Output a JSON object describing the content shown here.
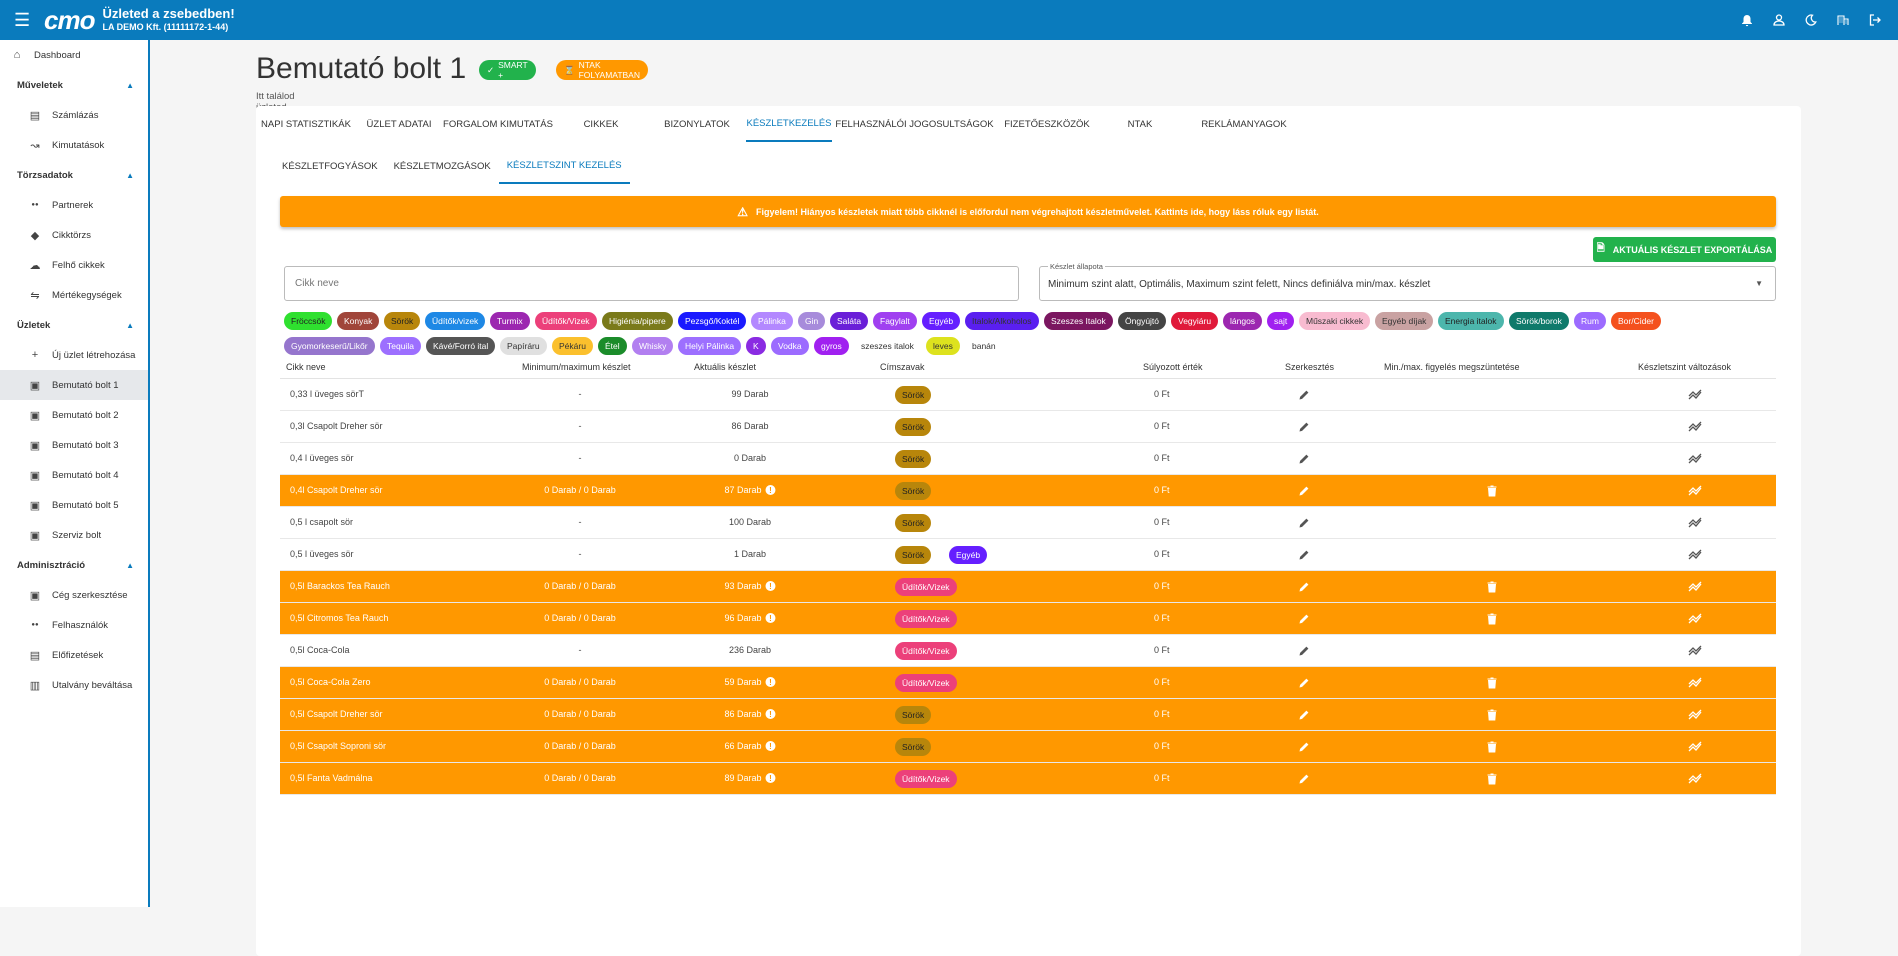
{
  "topbar": {
    "logo": "cmo",
    "title": "Üzleted a zsebedben!",
    "company": "LA DEMO Kft. (11111172-1-44)",
    "icons": [
      "flag-hu-icon",
      "bell-icon",
      "user-icon",
      "moon-icon",
      "building-icon",
      "logout-icon"
    ]
  },
  "sidebar": {
    "dashboard": "Dashboard",
    "sections": [
      {
        "title": "Műveletek",
        "items": [
          {
            "label": "Számlázás",
            "icon": "invoice-icon"
          },
          {
            "label": "Kimutatások",
            "icon": "chart-icon"
          }
        ]
      },
      {
        "title": "Törzsadatok",
        "items": [
          {
            "label": "Partnerek",
            "icon": "people-icon"
          },
          {
            "label": "Cikktörzs",
            "icon": "tag-icon"
          },
          {
            "label": "Felhő cikkek",
            "icon": "cloud-icon"
          },
          {
            "label": "Mértékegységek",
            "icon": "scale-icon"
          }
        ]
      },
      {
        "title": "Üzletek",
        "items": [
          {
            "label": "Új üzlet létrehozása",
            "icon": "plus-icon"
          },
          {
            "label": "Bemutató bolt 1",
            "icon": "store-icon",
            "active": true
          },
          {
            "label": "Bemutató bolt 2",
            "icon": "store-icon"
          },
          {
            "label": "Bemutató bolt 3",
            "icon": "store-icon"
          },
          {
            "label": "Bemutató bolt 4",
            "icon": "store-icon"
          },
          {
            "label": "Bemutató bolt 5",
            "icon": "store-icon"
          },
          {
            "label": "Szerviz bolt",
            "icon": "store-icon"
          }
        ]
      },
      {
        "title": "Adminisztráció",
        "items": [
          {
            "label": "Cég szerkesztése",
            "icon": "company-icon"
          },
          {
            "label": "Felhasználók",
            "icon": "people-icon"
          },
          {
            "label": "Előfizetések",
            "icon": "subscription-icon"
          },
          {
            "label": "Utalvány beváltása",
            "icon": "voucher-icon"
          }
        ]
      }
    ]
  },
  "header": {
    "title": "Bemutató bolt 1",
    "badge_smart": "SMART +",
    "badge_ntak": "NTAK FOLYAMATBAN",
    "subtitle": "Itt találod üzleted legfontosabb adatait és beállításait!"
  },
  "tabs": [
    "NAPI STATISZTIKÁK",
    "ÜZLET ADATAI",
    "FORGALOM KIMUTATÁS",
    "CIKKEK",
    "BIZONYLATOK",
    "KÉSZLETKEZELÉS",
    "FELHASZNÁLÓI JOGOSULTSÁGOK",
    "FIZETŐESZKÖZÖK",
    "NTAK",
    "REKLÁMANYAGOK"
  ],
  "active_tab": 5,
  "subtabs": [
    "KÉSZLETFOGYÁSOK",
    "KÉSZLETMOZGÁSOK",
    "KÉSZLETSZINT KEZELÉS"
  ],
  "active_subtab": 2,
  "warning": "Figyelem! Hiányos készletek miatt több cikknél is előfordul nem végrehajtott készletművelet. Kattints ide, hogy láss róluk egy listát.",
  "export_label": "AKTUÁLIS KÉSZLET EXPORTÁLÁSA",
  "search": {
    "placeholder": "Cikk neve"
  },
  "stock_filter": {
    "label": "Készlet állapota",
    "value": "Minimum szint alatt, Optimális, Maximum szint felett, Nincs definiálva min/max. készlet"
  },
  "chips": [
    {
      "label": "Fröccsök",
      "bg": "#2fe02f",
      "fg": "#222"
    },
    {
      "label": "Konyak",
      "bg": "#a0453a",
      "fg": "#fff"
    },
    {
      "label": "Sörök",
      "bg": "#b8860b",
      "fg": "#222"
    },
    {
      "label": "Üdítők/vizek",
      "bg": "#1e88e5",
      "fg": "#fff"
    },
    {
      "label": "Turmix",
      "bg": "#9c27b0",
      "fg": "#fff"
    },
    {
      "label": "Üdítők/Vizek",
      "bg": "#ec407a",
      "fg": "#fff"
    },
    {
      "label": "Higiénia/pipere",
      "bg": "#7a7a1a",
      "fg": "#fff"
    },
    {
      "label": "Pezsgő/Koktél",
      "bg": "#1a1aff",
      "fg": "#fff"
    },
    {
      "label": "Pálinka",
      "bg": "#b388ff",
      "fg": "#fff"
    },
    {
      "label": "Gin",
      "bg": "#a78bdb",
      "fg": "#fff"
    },
    {
      "label": "Saláta",
      "bg": "#6a1fd8",
      "fg": "#fff"
    },
    {
      "label": "Fagylalt",
      "bg": "#a040f0",
      "fg": "#fff"
    },
    {
      "label": "Egyéb",
      "bg": "#651fff",
      "fg": "#fff"
    },
    {
      "label": "Italok/Alkoholos",
      "bg": "#5a1ff0",
      "fg": "#333"
    },
    {
      "label": "Szeszes Italok",
      "bg": "#7b1660",
      "fg": "#fff"
    },
    {
      "label": "Öngyújtó",
      "bg": "#444",
      "fg": "#fff"
    },
    {
      "label": "Vegyiáru",
      "bg": "#e01a3a",
      "fg": "#fff"
    },
    {
      "label": "lángos",
      "bg": "#9c27b0",
      "fg": "#fff"
    },
    {
      "label": "sajt",
      "bg": "#a020f0",
      "fg": "#fff"
    },
    {
      "label": "Műszaki cikkek",
      "bg": "#f8bbd0",
      "fg": "#333"
    },
    {
      "label": "Egyéb díjak",
      "bg": "#c9a2a2",
      "fg": "#333"
    },
    {
      "label": "Energia italok",
      "bg": "#4cb6ac",
      "fg": "#222"
    },
    {
      "label": "Sörök/borok",
      "bg": "#0f7a6b",
      "fg": "#fff"
    },
    {
      "label": "Rum",
      "bg": "#9c6bff",
      "fg": "#fff"
    },
    {
      "label": "Bor/Cider",
      "bg": "#f4511e",
      "fg": "#fff"
    },
    {
      "label": "Gyomorkeserű/Likőr",
      "bg": "#9575cd",
      "fg": "#fff"
    },
    {
      "label": "Tequila",
      "bg": "#9d6fff",
      "fg": "#fff"
    },
    {
      "label": "Kávé/Forró ital",
      "bg": "#555",
      "fg": "#fff"
    },
    {
      "label": "Papíráru",
      "bg": "#e0e0e0",
      "fg": "#333"
    },
    {
      "label": "Pékáru",
      "bg": "#fbc02d",
      "fg": "#333"
    },
    {
      "label": "Étel",
      "bg": "#1b8c2a",
      "fg": "#fff"
    },
    {
      "label": "Whisky",
      "bg": "#b27ff0",
      "fg": "#fff"
    },
    {
      "label": "Helyi Pálinka",
      "bg": "#9d6fff",
      "fg": "#fff"
    },
    {
      "label": "K",
      "bg": "#8a2be2",
      "fg": "#fff"
    },
    {
      "label": "Vodka",
      "bg": "#9c6bff",
      "fg": "#fff"
    },
    {
      "label": "gyros",
      "bg": "#a020f0",
      "fg": "#fff"
    },
    {
      "label": "szeszes italok",
      "bg": "#ffffff",
      "fg": "#333"
    },
    {
      "label": "leves",
      "bg": "#dde21e",
      "fg": "#333"
    },
    {
      "label": "banán",
      "bg": "#ffffff",
      "fg": "#333"
    }
  ],
  "table": {
    "columns": [
      "Cikk neve",
      "Minimum/maximum készlet",
      "Aktuális készlet",
      "Címszavak",
      "Súlyozott érték",
      "Szerkesztés",
      "Min./max. figyelés megszüntetése",
      "Készletszint változások"
    ],
    "rows": [
      {
        "name": "0,33 l üveges sörT",
        "minmax": "-",
        "stock": "99 Darab",
        "tags": [
          {
            "label": "Sörök",
            "bg": "#b8860b",
            "fg": "#222"
          }
        ],
        "value": "0 Ft",
        "hl": false
      },
      {
        "name": "0,3l Csapolt Dreher sör",
        "minmax": "-",
        "stock": "86 Darab",
        "tags": [
          {
            "label": "Sörök",
            "bg": "#b8860b",
            "fg": "#222"
          }
        ],
        "value": "0 Ft",
        "hl": false
      },
      {
        "name": "0,4 l üveges sör",
        "minmax": "-",
        "stock": "0 Darab",
        "tags": [
          {
            "label": "Sörök",
            "bg": "#b8860b",
            "fg": "#222"
          }
        ],
        "value": "0 Ft",
        "hl": false
      },
      {
        "name": "0,4l Csapolt Dreher sör",
        "minmax": "0 Darab / 0 Darab",
        "stock": "87 Darab",
        "tags": [
          {
            "label": "Sörök",
            "bg": "#b8860b",
            "fg": "#222"
          }
        ],
        "value": "0 Ft",
        "hl": true
      },
      {
        "name": "0,5 l csapolt sör",
        "minmax": "-",
        "stock": "100 Darab",
        "tags": [
          {
            "label": "Sörök",
            "bg": "#b8860b",
            "fg": "#222"
          }
        ],
        "value": "0 Ft",
        "hl": false
      },
      {
        "name": "0,5 l üveges sör",
        "minmax": "-",
        "stock": "1 Darab",
        "tags": [
          {
            "label": "Sörök",
            "bg": "#b8860b",
            "fg": "#222"
          },
          {
            "label": "Egyéb",
            "bg": "#651fff",
            "fg": "#fff"
          }
        ],
        "value": "0 Ft",
        "hl": false
      },
      {
        "name": "0,5l Barackos Tea Rauch",
        "minmax": "0 Darab / 0 Darab",
        "stock": "93 Darab",
        "tags": [
          {
            "label": "Üdítők/Vizek",
            "bg": "#ec407a",
            "fg": "#fff"
          }
        ],
        "value": "0 Ft",
        "hl": true
      },
      {
        "name": "0,5l Citromos Tea Rauch",
        "minmax": "0 Darab / 0 Darab",
        "stock": "96 Darab",
        "tags": [
          {
            "label": "Üdítők/Vizek",
            "bg": "#ec407a",
            "fg": "#fff"
          }
        ],
        "value": "0 Ft",
        "hl": true
      },
      {
        "name": "0,5l Coca-Cola",
        "minmax": "-",
        "stock": "236 Darab",
        "tags": [
          {
            "label": "Üdítők/Vizek",
            "bg": "#ec407a",
            "fg": "#fff"
          }
        ],
        "value": "0 Ft",
        "hl": false
      },
      {
        "name": "0,5l Coca-Cola Zero",
        "minmax": "0 Darab / 0 Darab",
        "stock": "59 Darab",
        "tags": [
          {
            "label": "Üdítők/Vizek",
            "bg": "#ec407a",
            "fg": "#fff"
          }
        ],
        "value": "0 Ft",
        "hl": true
      },
      {
        "name": "0,5l Csapolt Dreher sör",
        "minmax": "0 Darab / 0 Darab",
        "stock": "86 Darab",
        "tags": [
          {
            "label": "Sörök",
            "bg": "#b8860b",
            "fg": "#222"
          }
        ],
        "value": "0 Ft",
        "hl": true
      },
      {
        "name": "0,5l Csapolt Soproni sör",
        "minmax": "0 Darab / 0 Darab",
        "stock": "66 Darab",
        "tags": [
          {
            "label": "Sörök",
            "bg": "#b8860b",
            "fg": "#222"
          }
        ],
        "value": "0 Ft",
        "hl": true
      },
      {
        "name": "0,5l Fanta Vadmálna",
        "minmax": "0 Darab / 0 Darab",
        "stock": "89 Darab",
        "tags": [
          {
            "label": "Üdítők/Vizek",
            "bg": "#ec407a",
            "fg": "#fff"
          }
        ],
        "value": "0 Ft",
        "hl": true
      }
    ]
  }
}
